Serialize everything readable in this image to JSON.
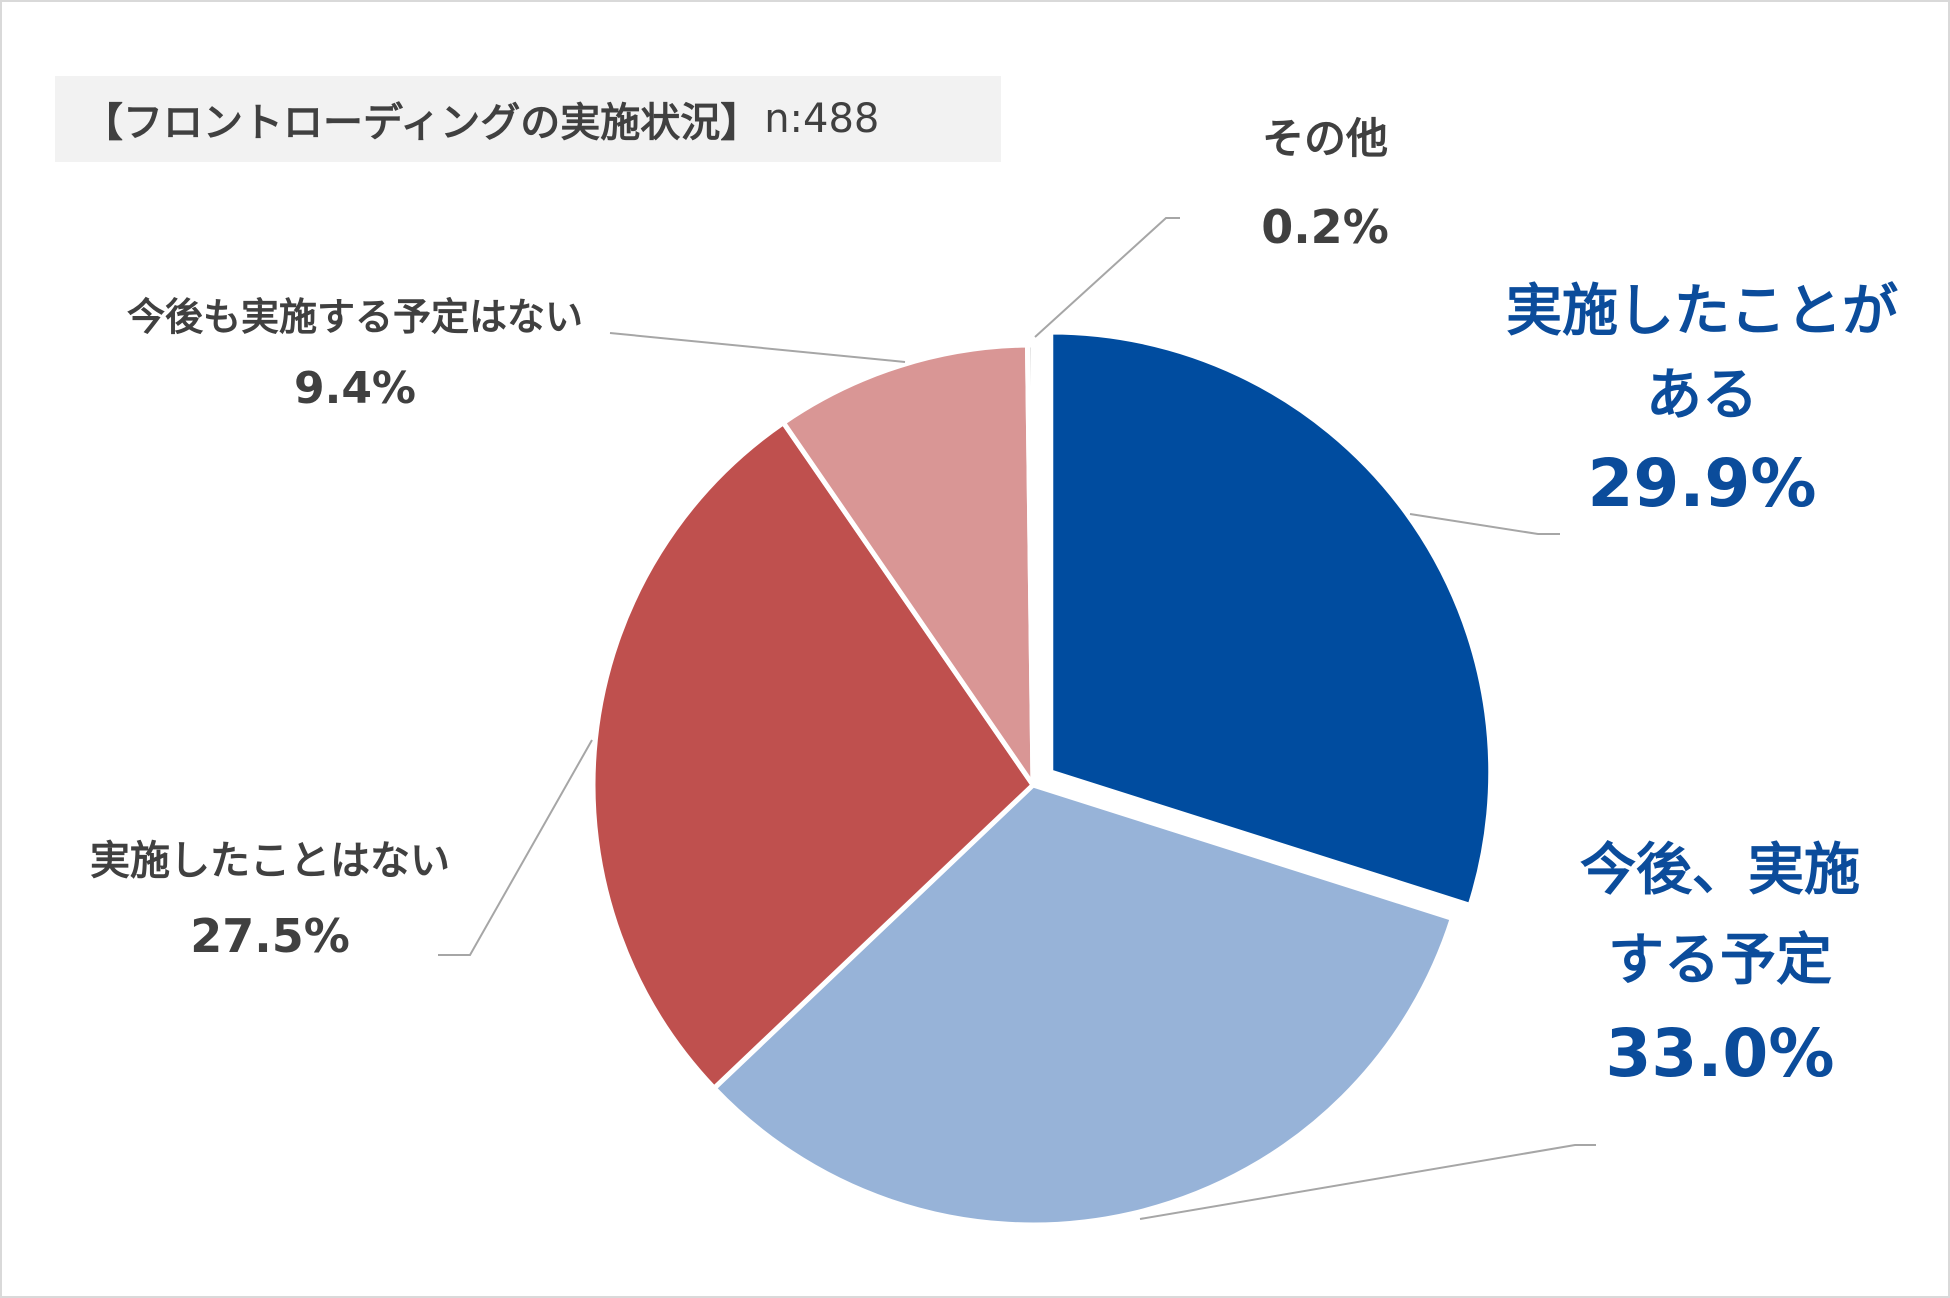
{
  "title": {
    "text": "【フロントローディングの実施状況】",
    "n_label": "n:488"
  },
  "chart_data": {
    "type": "pie",
    "title": "【フロントローディングの実施状況】 n:488",
    "start_angle_deg": 0,
    "direction": "clockwise",
    "slices": [
      {
        "label": "実施したことがある",
        "label_lines": [
          "実施したことが",
          "ある"
        ],
        "value": 29.9,
        "value_label": "29.9%",
        "color": "#004c9f",
        "label_color": "#0b4c9b",
        "exploded": true
      },
      {
        "label": "今後、実施する予定",
        "label_lines": [
          "今後、実施",
          "する予定"
        ],
        "value": 33.0,
        "value_label": "33.0%",
        "color": "#97b3d8",
        "label_color": "#0b4c9b",
        "exploded": false
      },
      {
        "label": "実施したことはない",
        "label_lines": [
          "実施したことはない"
        ],
        "value": 27.5,
        "value_label": "27.5%",
        "color": "#bf504e",
        "label_color": "#404040",
        "exploded": false
      },
      {
        "label": "今後も実施する予定はない",
        "label_lines": [
          "今後も実施する予定はない"
        ],
        "value": 9.4,
        "value_label": "9.4%",
        "color": "#d99695",
        "label_color": "#404040",
        "exploded": false
      },
      {
        "label": "その他",
        "label_lines": [
          "その他"
        ],
        "value": 0.2,
        "value_label": "0.2%",
        "color": "#c8c8c8",
        "label_color": "#404040",
        "exploded": false
      }
    ]
  }
}
